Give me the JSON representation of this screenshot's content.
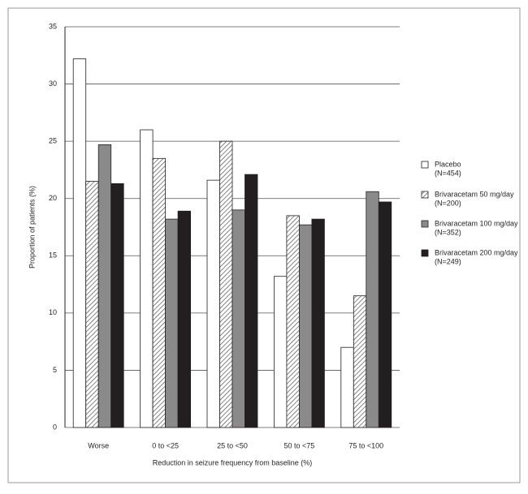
{
  "chart_data": {
    "type": "bar",
    "x_label": "Reduction in seizure frequency from baseline (%)",
    "y_label": "Proportion of patients (%)",
    "categories": [
      "Worse",
      "0 to <25",
      "25 to <50",
      "50 to <75",
      "75 to <100"
    ],
    "series": [
      {
        "name": "Placebo",
        "n_label": "(N=454)",
        "color": "#ffffff",
        "values": [
          32.2,
          26.0,
          21.6,
          13.2,
          7.0
        ]
      },
      {
        "name": "Brivaracetam 50 mg/day",
        "n_label": "(N=200)",
        "color": "#ffffff",
        "hatch": true,
        "values": [
          21.5,
          23.5,
          25.0,
          18.5,
          11.5
        ]
      },
      {
        "name": "Brivaracetam 100 mg/day",
        "n_label": "(N=352)",
        "color": "#8a8a8a",
        "values": [
          24.7,
          18.2,
          19.0,
          17.7,
          20.6
        ]
      },
      {
        "name": "Brivaracetam 200 mg/day",
        "n_label": "(N=249)",
        "color": "#231f20",
        "values": [
          21.3,
          18.9,
          22.1,
          18.2,
          19.7
        ]
      }
    ],
    "ylim": [
      0,
      35
    ],
    "yticks": [
      0,
      5,
      10,
      15,
      20,
      25,
      30,
      35
    ],
    "grid": true,
    "legend": "right"
  }
}
